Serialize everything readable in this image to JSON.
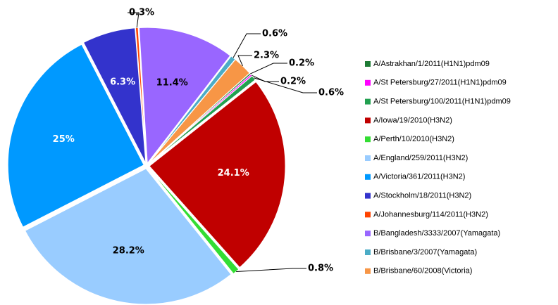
{
  "chart_data": {
    "type": "pie",
    "categories": [
      "A/Astrakhan/1/2011(H1N1)pdm09",
      "A/St Petersburg/27/2011(H1N1)pdm09",
      "A/St Petersburg/100/2011(H1N1)pdm09",
      "A/Iowa/19/2010(H3N2)",
      "A/Perth/10/2010(H3N2)",
      "A/England/259/2011(H3N2)",
      "A/Victoria/361/2011(H3N2)",
      "A/Stockholm/18/2011(H3N2)",
      "A/Johannesburg/114/2011(H3N2)",
      "B/Bangladesh/3333/2007(Yamagata)",
      "B/Brisbane/3/2007(Yamagata)",
      "B/Brisbane/60/2008(Victoria)"
    ],
    "values": [
      0.2,
      0.2,
      0.6,
      24.1,
      0.8,
      28.2,
      25,
      6.3,
      0.3,
      11.4,
      0.6,
      2.3
    ],
    "value_labels": [
      "0.2%",
      "0.2%",
      "0.6%",
      "24.1%",
      "0.8%",
      "28.2%",
      "25%",
      "6.3%",
      "0.3%",
      "11.4%",
      "0.6%",
      "2.3%"
    ],
    "colors": [
      "#1e7b34",
      "#ff00ff",
      "#22a050",
      "#c00000",
      "#33dd33",
      "#99ccff",
      "#0099ff",
      "#3333cc",
      "#ff4400",
      "#9966ff",
      "#4bacc6",
      "#f79646"
    ]
  }
}
